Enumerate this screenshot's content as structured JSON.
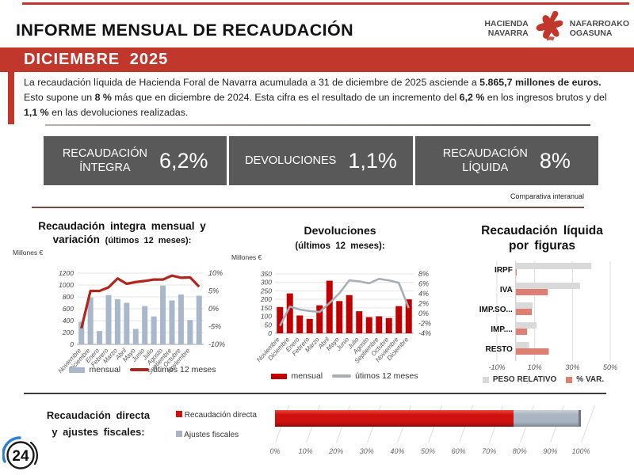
{
  "header": {
    "title": "INFORME MENSUAL DE RECAUDACIÓN",
    "banner": "DICIEMBRE 2025",
    "accent_color": "#c2372c",
    "logo": {
      "hacienda": "HACIENDA\nNAVARRA",
      "nafarroako": "NAFARROAKO\nOGASUNA"
    }
  },
  "intro": {
    "segments": [
      {
        "text": "La recaudación líquida de Hacienda Foral de Navarra acumulada a 31 de diciembre de 2025 asciende a ",
        "bold": false
      },
      {
        "text": "5.865,7 millones de euros.",
        "bold": true
      },
      {
        "text": " Esto supone un ",
        "bold": false
      },
      {
        "text": "8 %",
        "bold": true
      },
      {
        "text": " más que en diciembre de 2024. Esta cifra es el resultado de un incremento del ",
        "bold": false
      },
      {
        "text": "6,2 %",
        "bold": true
      },
      {
        "text": " en los ingresos brutos y del ",
        "bold": false
      },
      {
        "text": "1,1 %",
        "bold": true
      },
      {
        "text": " en las devoluciones realizadas.",
        "bold": false
      }
    ]
  },
  "summary": {
    "boxes": [
      {
        "label": "RECAUDACIÓN\nÍNTEGRA",
        "value": "6,2%"
      },
      {
        "label": "DEVOLUCIONES",
        "value": "1,1%"
      },
      {
        "label": "RECAUDACIÓN\nLÍQUIDA",
        "value": "8%"
      }
    ],
    "note": "Comparativa interanual"
  },
  "chart_data": [
    {
      "id": "recaudacion-integra",
      "type": "bar+line",
      "title_line1": "Recaudación integra mensual y",
      "title_line2": "variación",
      "title_sub": "(últimos 12 meses):",
      "unit_label": "Millones €",
      "categories": [
        "Noviembre",
        "Diciembre",
        "Enero",
        "Febrero",
        "Marzo",
        "Abril",
        "Mayo",
        "Junio",
        "Julio",
        "Agosto",
        "Septiembre",
        "Octubre",
        "Noviembre",
        ""
      ],
      "bar_values": [
        380,
        790,
        225,
        830,
        760,
        700,
        260,
        645,
        470,
        990,
        740,
        840,
        410,
        820
      ],
      "line_values": [
        -5.5,
        5,
        5,
        6,
        8.5,
        7,
        7.5,
        7.8,
        8.2,
        8.2,
        9.3,
        8.7,
        8.8,
        6.2
      ],
      "y_left": {
        "min": 0,
        "max": 1200,
        "step": 200
      },
      "y_right": {
        "min": -10,
        "max": 10,
        "labels": [
          "10%",
          "5%",
          "0%",
          "-5%",
          "-10%"
        ]
      },
      "bar_color": "#a9b7cb",
      "line_color": "#b2251c",
      "legend": [
        {
          "label": "mensual",
          "type": "bar",
          "color": "#a9b7cb"
        },
        {
          "label": "útimos 12 meses",
          "type": "line",
          "color": "#b2251c"
        }
      ]
    },
    {
      "id": "devoluciones",
      "type": "bar+line",
      "title_line1": "Devoluciones",
      "title_line2": "",
      "title_sub": "(últimos 12 meses):",
      "unit_label": "Millones €",
      "categories": [
        "Noviembre",
        "Diciembre",
        "Enero",
        "Febrero",
        "Marzo",
        "Abril",
        "Mayo",
        "Junio",
        "Julio",
        "Agosto",
        "Septiembre",
        "Octubre",
        "Noviembre",
        "Diciembre"
      ],
      "bar_values": [
        155,
        235,
        105,
        85,
        165,
        310,
        190,
        225,
        130,
        95,
        100,
        90,
        160,
        200
      ],
      "line_values": [
        -2.5,
        1.4,
        0.8,
        0.5,
        0.3,
        2.1,
        4.1,
        6.7,
        6.5,
        6.1,
        7.0,
        6.7,
        6.2,
        1.1
      ],
      "y_left": {
        "min": 0,
        "max": 350,
        "step": 50
      },
      "y_right": {
        "min": -4,
        "max": 8,
        "labels": [
          "8%",
          "6%",
          "4%",
          "2%",
          "0%",
          "-2%",
          "-4%"
        ]
      },
      "bar_color": "#c00000",
      "line_color": "#a6aeb8",
      "legend": [
        {
          "label": "mensual",
          "type": "bar",
          "color": "#c00000"
        },
        {
          "label": "útimos 12 meses",
          "type": "line",
          "color": "#a6aeb8"
        }
      ]
    },
    {
      "id": "recaudacion-liquida-figuras",
      "type": "hbar",
      "title": "Recaudación líquida\npor figuras",
      "categories": [
        "IRPF",
        "IVA",
        "IMP.SO...",
        "IMP....",
        "RESTO"
      ],
      "series": [
        {
          "name": "PESO RELATIVO",
          "color": "#d9d9d9",
          "values": [
            40,
            34,
            9,
            11,
            7
          ]
        },
        {
          "name": "% VAR.",
          "color": "#dd7f72",
          "values": [
            0.5,
            17,
            8.5,
            6,
            17.5
          ]
        }
      ],
      "x_axis": {
        "min": -10,
        "max": 50,
        "tick_values": [
          -10,
          10,
          30,
          50
        ],
        "tick_labels": [
          "-10%",
          "10%",
          "30%",
          "50%"
        ]
      }
    },
    {
      "id": "directa-ajustes",
      "type": "stacked-hbar",
      "title": "Recaudación directa\ny ajustes fiscales:",
      "segments": [
        {
          "name": "Recaudación directa",
          "color": "#cf1110",
          "value": 78
        },
        {
          "name": "Ajustes fiscales",
          "color": "#a9b3c1",
          "value": 22
        }
      ],
      "x_ticks": [
        "0%",
        "10%",
        "20%",
        "30%",
        "40%",
        "50%",
        "60%",
        "70%",
        "80%",
        "90%",
        "100%"
      ]
    }
  ],
  "badge": {
    "text": "24"
  }
}
